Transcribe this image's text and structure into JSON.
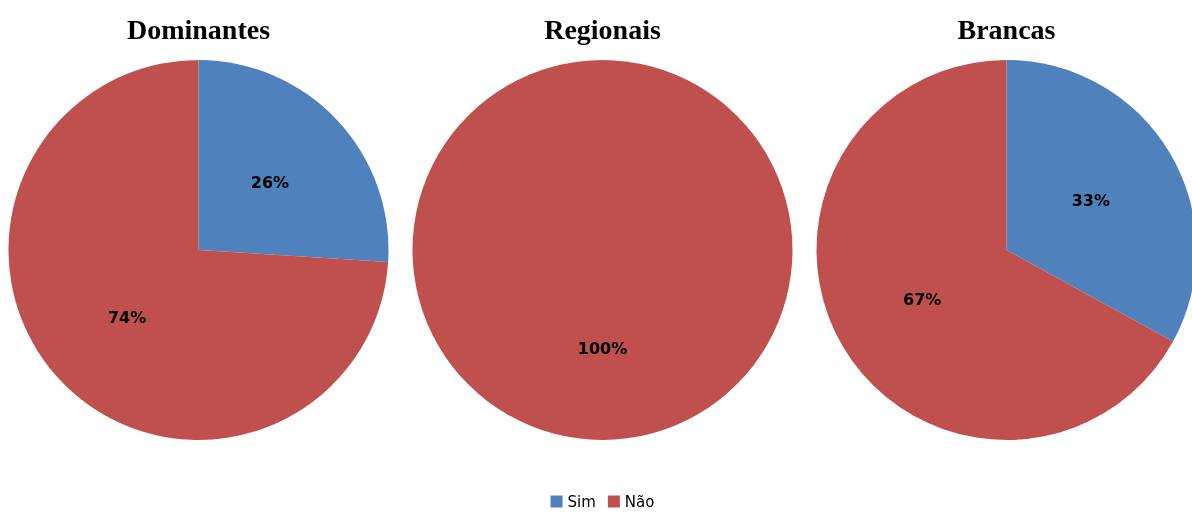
{
  "chart_data": [
    {
      "type": "pie",
      "title": "Dominantes",
      "categories": [
        null,
        null
      ],
      "values": [
        26,
        74
      ],
      "colors": [
        "#4f81bd",
        "#c0504d"
      ],
      "value_labels": [
        "26%",
        "74%"
      ]
    },
    {
      "type": "pie",
      "title": "Regionais",
      "categories": [
        "Sim",
        "Não"
      ],
      "values": [
        0,
        100
      ],
      "colors": [
        "#4f81bd",
        "#c0504d"
      ],
      "value_labels": [
        null,
        "100%"
      ],
      "legend": "bottom"
    },
    {
      "type": "pie",
      "title": "Brancas",
      "categories": [
        null,
        null
      ],
      "values": [
        33,
        67
      ],
      "colors": [
        "#4f81bd",
        "#c0504d"
      ],
      "value_labels": [
        "33%",
        "67%"
      ]
    }
  ]
}
